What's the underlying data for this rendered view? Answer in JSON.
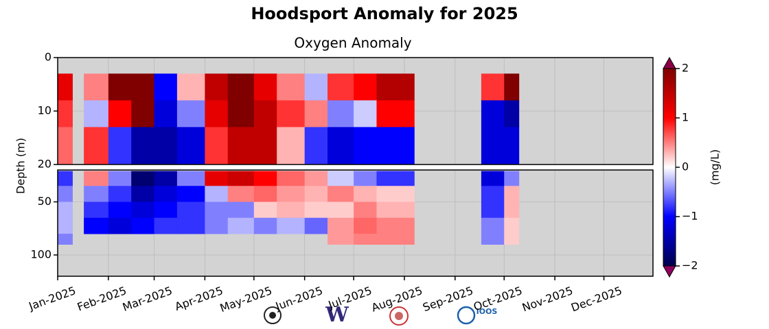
{
  "chart_data": {
    "type": "heatmap",
    "title": "Hoodsport Anomaly for 2025",
    "subtitle": "Oxygen Anomaly",
    "ylabel": "Depth (m)",
    "colorbar_label": "(mg/L)",
    "xlim": [
      "2025-01-01",
      "2025-12-31"
    ],
    "xticks": [
      {
        "value": "2025-01-01",
        "label": "Jan-2025"
      },
      {
        "value": "2025-02-01",
        "label": "Feb-2025"
      },
      {
        "value": "2025-03-01",
        "label": "Mar-2025"
      },
      {
        "value": "2025-04-01",
        "label": "Apr-2025"
      },
      {
        "value": "2025-05-01",
        "label": "May-2025"
      },
      {
        "value": "2025-06-01",
        "label": "Jun-2025"
      },
      {
        "value": "2025-07-01",
        "label": "Jul-2025"
      },
      {
        "value": "2025-08-01",
        "label": "Aug-2025"
      },
      {
        "value": "2025-09-01",
        "label": "Sep-2025"
      },
      {
        "value": "2025-10-01",
        "label": "Oct-2025"
      },
      {
        "value": "2025-11-01",
        "label": "Nov-2025"
      },
      {
        "value": "2025-12-01",
        "label": "Dec-2025"
      }
    ],
    "x_edges": [
      "2025-01-01",
      "2025-01-10",
      "2025-01-17",
      "2025-02-01",
      "2025-02-15",
      "2025-03-01",
      "2025-03-15",
      "2025-04-01",
      "2025-04-15",
      "2025-05-01",
      "2025-05-15",
      "2025-06-01",
      "2025-06-15",
      "2025-07-01",
      "2025-07-15",
      "2025-08-07",
      "2025-09-17",
      "2025-10-01",
      "2025-10-10"
    ],
    "panels": [
      {
        "ylim": [
          0,
          20
        ],
        "yticks": [
          0,
          10,
          20
        ],
        "depth_edges": [
          3,
          8,
          13,
          20
        ],
        "values": [
          [
            1.2,
            null,
            0.5,
            2,
            2,
            -1,
            0.3,
            1.5,
            2,
            1.2,
            0.5,
            -0.3,
            0.8,
            1.0,
            1.6,
            null,
            0.8,
            2
          ],
          [
            0.8,
            null,
            -0.3,
            1,
            2,
            -1.2,
            -0.5,
            1.2,
            2,
            1.5,
            0.8,
            0.5,
            -0.5,
            -0.2,
            1.0,
            null,
            -1.2,
            -1.5
          ],
          [
            0.6,
            null,
            0.8,
            -0.8,
            -1.5,
            -1.5,
            -1.2,
            0.8,
            1.5,
            1.5,
            0.3,
            -0.8,
            -1.2,
            -1.0,
            -1.0,
            null,
            -1.2,
            -1.2
          ]
        ]
      },
      {
        "ylim": [
          20,
          120
        ],
        "yticks": [
          50,
          100
        ],
        "depth_edges": [
          21,
          35,
          50,
          65,
          80,
          90
        ],
        "values": [
          [
            -0.8,
            null,
            0.5,
            -0.5,
            -1.8,
            -1.5,
            -0.5,
            1.2,
            1.4,
            1.0,
            0.6,
            0.4,
            -0.2,
            -0.5,
            -0.8,
            null,
            -1.2,
            -0.5
          ],
          [
            -0.5,
            null,
            -0.5,
            -0.8,
            -1.5,
            -1.2,
            -1.0,
            -0.3,
            0.5,
            0.6,
            0.4,
            0.3,
            0.5,
            0.3,
            0.2,
            null,
            -0.8,
            0.3
          ],
          [
            -0.3,
            null,
            -0.8,
            -1.0,
            -1.2,
            -1.0,
            -0.8,
            -0.5,
            -0.5,
            0.2,
            0.3,
            0.2,
            0.2,
            0.5,
            0.3,
            null,
            -0.8,
            0.3
          ],
          [
            -0.3,
            null,
            -1.0,
            -1.2,
            -1.0,
            -0.8,
            -0.8,
            -0.5,
            -0.3,
            -0.5,
            -0.3,
            -0.6,
            0.4,
            0.6,
            0.5,
            null,
            -0.5,
            0.2
          ],
          [
            -0.5,
            null,
            null,
            null,
            null,
            null,
            null,
            null,
            null,
            null,
            null,
            null,
            0.4,
            0.5,
            0.5,
            null,
            -0.5,
            0.2
          ]
        ]
      }
    ],
    "clim": [
      -2,
      2
    ],
    "colorbar_ticks": [
      {
        "value": -2,
        "label": "−2"
      },
      {
        "value": -1,
        "label": "−1"
      },
      0,
      1,
      2
    ],
    "colormap": [
      "#00004c",
      "#0000ff",
      "#ffffff",
      "#ff0000",
      "#800000"
    ],
    "over_color": "#8b0045",
    "under_color": "#8b0060",
    "background": "#d3d3d3",
    "grid": true,
    "logos": [
      "W",
      "IOOS"
    ]
  }
}
